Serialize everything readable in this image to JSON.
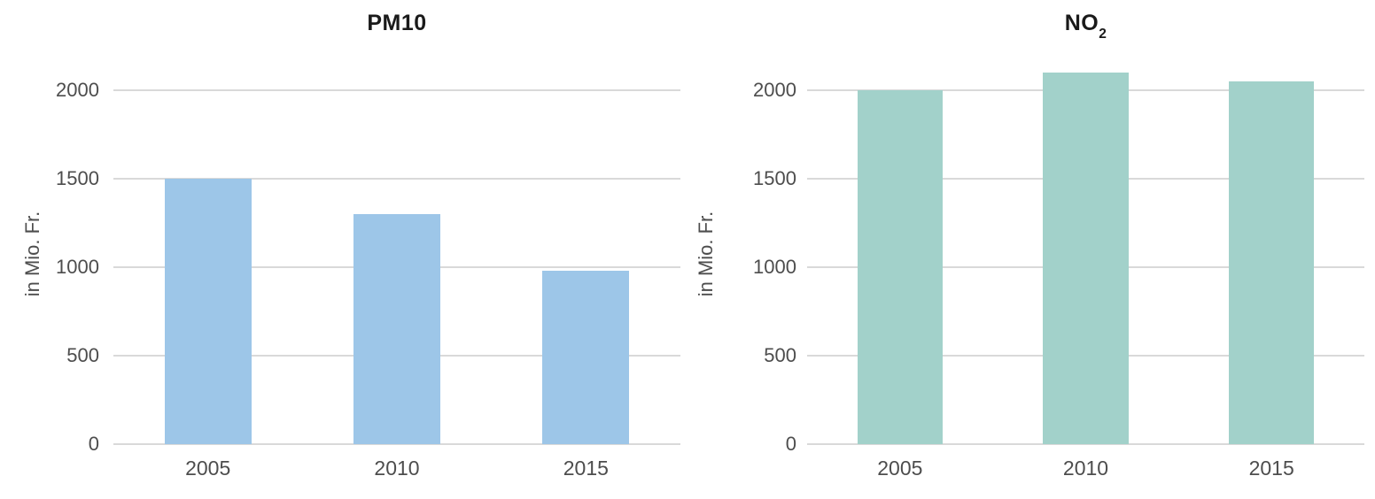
{
  "chart_data": [
    {
      "type": "bar",
      "title": "PM10",
      "title_main": "PM10",
      "title_sub": "",
      "categories": [
        "2005",
        "2010",
        "2015"
      ],
      "values": [
        1500,
        1300,
        980
      ],
      "xlabel": "",
      "ylabel": "in Mio. Fr.",
      "yticks": [
        0,
        500,
        1000,
        1500,
        2000
      ],
      "ylim": [
        0,
        2150
      ],
      "bar_color": "#9dc6e8",
      "grid": true,
      "legend": false
    },
    {
      "type": "bar",
      "title": "NO2",
      "title_main": "NO",
      "title_sub": "2",
      "categories": [
        "2005",
        "2010",
        "2015"
      ],
      "values": [
        2000,
        2100,
        2050
      ],
      "xlabel": "",
      "ylabel": "in Mio. Fr.",
      "yticks": [
        0,
        500,
        1000,
        1500,
        2000
      ],
      "ylim": [
        0,
        2150
      ],
      "bar_color": "#a2d1ca",
      "grid": true,
      "legend": false
    }
  ],
  "colors": {
    "grid_line": "#d9d9d9",
    "axis_text": "#4d4d4d",
    "title_text": "#1a1a1a",
    "background": "#ffffff"
  }
}
